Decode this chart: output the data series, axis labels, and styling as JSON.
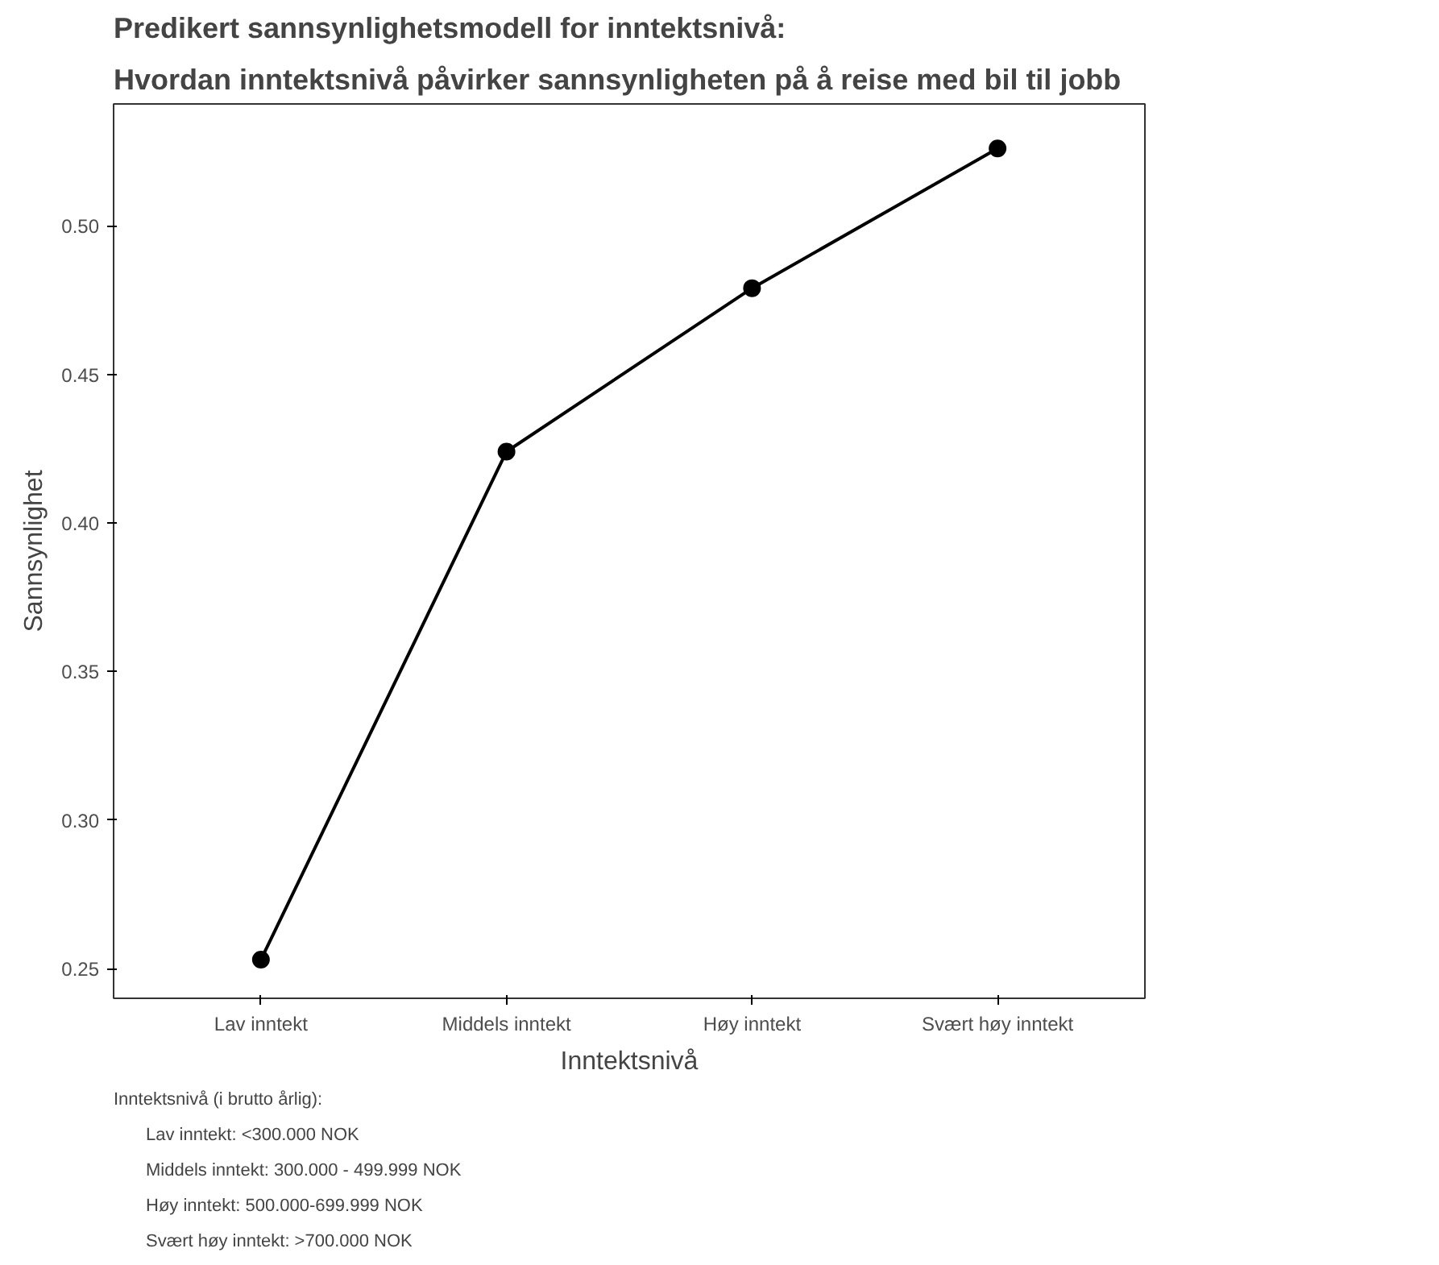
{
  "chart_data": {
    "type": "line",
    "title": "Predikert sannsynlighetsmodell for inntektsnivå:",
    "subtitle": "Hvordan inntektsnivå påvirker sannsynligheten på å reise med bil til jobb",
    "xlabel": "Inntektsnivå",
    "ylabel": "Sannsynlighet",
    "categories": [
      "Lav inntekt",
      "Middels inntekt",
      "Høy inntekt",
      "Svært høy inntekt"
    ],
    "series": [
      {
        "color": "#000000",
        "values": [
          0.253,
          0.424,
          0.479,
          0.526
        ]
      }
    ],
    "ylim": [
      0.24,
      0.541
    ],
    "yticks": [
      0.25,
      {
        "value": 0.3,
        "label": "0.30"
      },
      0.35,
      {
        "value": 0.4,
        "label": "0.40"
      },
      0.45,
      {
        "value": 0.5,
        "label": "0.50"
      }
    ],
    "grid": false,
    "marker": "circle",
    "line_style": "solid",
    "annotations": [
      "Inntektsnivå (i brutto årlig):",
      "Lav inntekt: <300.000 NOK",
      "Middels inntekt: 300.000 - 499.999 NOK",
      "Høy inntekt: 500.000-699.999 NOK",
      "Svært høy inntekt: >700.000 NOK"
    ]
  }
}
